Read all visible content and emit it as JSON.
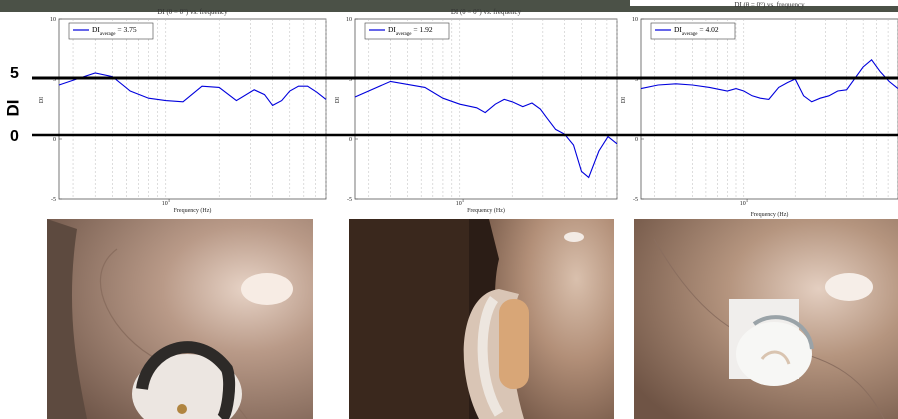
{
  "slide": {
    "y_axis_label": "DI",
    "reference_lines": {
      "upper_label": "5",
      "lower_label": "0"
    }
  },
  "chart_data": [
    {
      "type": "line",
      "title": "DI (θ = 0°) vs. frequency",
      "xlabel": "Frequency (Hz)",
      "ylabel": "DI",
      "xscale": "log",
      "xlim": [
        250,
        8000
      ],
      "ylim": [
        -5,
        10
      ],
      "x_tick_labels": [
        "10^3"
      ],
      "y_tick_labels": [
        "10",
        "5",
        "0",
        "-5"
      ],
      "grid": "vertical dashed",
      "legend": {
        "placement": "top-left",
        "label": "DI average = 3.75"
      },
      "series": [
        {
          "name": "DI average = 3.75",
          "color": "#0000dd",
          "x": [
            250,
            315,
            400,
            500,
            630,
            800,
            1000,
            1250,
            1600,
            2000,
            2500,
            3150,
            3600,
            4000,
            4500,
            5000,
            5600,
            6300,
            7100,
            8000
          ],
          "y": [
            4.5,
            5.0,
            5.5,
            5.2,
            4.0,
            3.4,
            3.2,
            3.1,
            4.4,
            4.3,
            3.2,
            4.1,
            3.7,
            2.8,
            3.2,
            4.0,
            4.4,
            4.4,
            3.9,
            3.3
          ]
        }
      ]
    },
    {
      "type": "line",
      "title": "DI (θ = 0°) vs. frequency",
      "xlabel": "Frequency (Hz)",
      "ylabel": "DI",
      "xscale": "log",
      "xlim": [
        250,
        8000
      ],
      "ylim": [
        -5,
        10
      ],
      "x_tick_labels": [
        "10^3"
      ],
      "y_tick_labels": [
        "10",
        "5",
        "0",
        "-5"
      ],
      "grid": "vertical dashed",
      "legend": {
        "placement": "top-left",
        "label": "DI average = 1.92"
      },
      "series": [
        {
          "name": "DI average = 1.92",
          "color": "#0000dd",
          "x": [
            250,
            400,
            630,
            800,
            1000,
            1250,
            1400,
            1600,
            1800,
            2000,
            2300,
            2600,
            2900,
            3150,
            3550,
            4000,
            4500,
            5000,
            5500,
            6300,
            7100,
            8000
          ],
          "y": [
            3.5,
            4.8,
            4.3,
            3.4,
            2.9,
            2.6,
            2.2,
            2.9,
            3.3,
            3.1,
            2.7,
            3.0,
            2.5,
            1.8,
            0.8,
            0.4,
            -0.5,
            -2.7,
            -3.2,
            -1.0,
            0.2,
            -0.4
          ]
        }
      ]
    },
    {
      "type": "line",
      "title": "DI (θ = 0°) vs. frequency",
      "xlabel": "Frequency (Hz)",
      "ylabel": "DI",
      "xscale": "log",
      "xlim": [
        250,
        8000
      ],
      "ylim": [
        -5,
        10
      ],
      "x_tick_labels": [
        "10^3"
      ],
      "y_tick_labels": [
        "10",
        "5",
        "0",
        "-5"
      ],
      "grid": "vertical dashed",
      "legend": {
        "placement": "top-left",
        "label": "DI average = 4.02"
      },
      "series": [
        {
          "name": "DI average = 4.02",
          "color": "#0000dd",
          "x": [
            250,
            315,
            400,
            500,
            630,
            800,
            900,
            1000,
            1120,
            1250,
            1400,
            1600,
            1800,
            2000,
            2240,
            2500,
            2800,
            3150,
            3550,
            4000,
            4500,
            5000,
            5600,
            6300,
            7100,
            8000
          ],
          "y": [
            4.2,
            4.5,
            4.6,
            4.5,
            4.3,
            4.0,
            4.2,
            4.0,
            3.6,
            3.4,
            3.3,
            4.3,
            4.7,
            5.0,
            3.6,
            3.1,
            3.4,
            3.6,
            4.0,
            4.1,
            5.1,
            6.0,
            6.6,
            5.6,
            4.8,
            4.2
          ]
        }
      ]
    }
  ],
  "photos": [
    {
      "subject": "behind-the-ear hearing aid on manikin ear",
      "device_color": "#2d2a28"
    },
    {
      "subject": "beige hearing aid behind manikin ear",
      "device_color": "#d8a677"
    },
    {
      "subject": "in-the-ear hearing aid on manikin ear",
      "device_color": "#f4f4f2"
    }
  ],
  "colors": {
    "series": "#0000dd",
    "reference_line": "#000000",
    "topbar": "#4b5147",
    "skin": "#b59581"
  }
}
